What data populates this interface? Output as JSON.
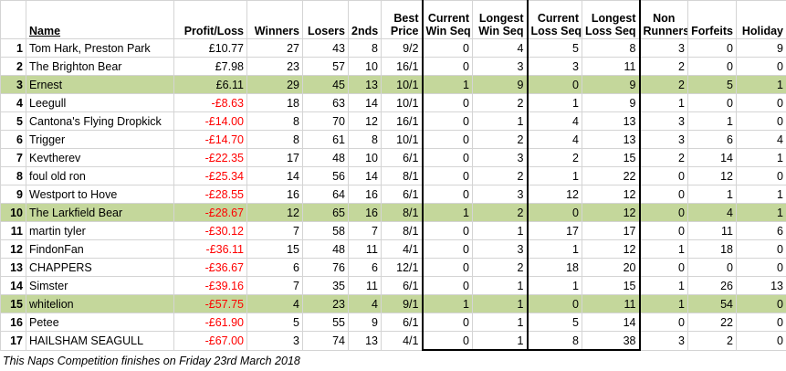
{
  "headers": {
    "name": "Name",
    "profit_loss": "Profit/Loss",
    "winners": "Winners",
    "losers": "Losers",
    "seconds": "2nds",
    "best_price": [
      "Best",
      "Price"
    ],
    "current_win_seq": [
      "Current",
      "Win Seq"
    ],
    "longest_win_seq": [
      "Longest",
      "Win Seq"
    ],
    "current_loss_seq": [
      "Current",
      "Loss Seq"
    ],
    "longest_loss_seq": [
      "Longest",
      "Loss Seq"
    ],
    "non_runners": [
      "Non",
      "Runners"
    ],
    "forfeits": "Forfeits",
    "holiday": "Holiday"
  },
  "rows": [
    {
      "rank": "1",
      "name": "Tom Hark, Preston Park",
      "pl": "£10.77",
      "neg": false,
      "winners": "27",
      "losers": "43",
      "seconds": "8",
      "best": "9/2",
      "cws": "0",
      "lws": "4",
      "cls": "5",
      "lls": "8",
      "nr": "3",
      "forfeits": "0",
      "holiday": "9",
      "hl": false
    },
    {
      "rank": "2",
      "name": "The Brighton Bear",
      "pl": "£7.98",
      "neg": false,
      "winners": "23",
      "losers": "57",
      "seconds": "10",
      "best": "16/1",
      "cws": "0",
      "lws": "3",
      "cls": "3",
      "lls": "11",
      "nr": "2",
      "forfeits": "0",
      "holiday": "0",
      "hl": false
    },
    {
      "rank": "3",
      "name": "Ernest",
      "pl": "£6.11",
      "neg": false,
      "winners": "29",
      "losers": "45",
      "seconds": "13",
      "best": "10/1",
      "cws": "1",
      "lws": "9",
      "cls": "0",
      "lls": "9",
      "nr": "2",
      "forfeits": "5",
      "holiday": "1",
      "hl": true
    },
    {
      "rank": "4",
      "name": "Leegull",
      "pl": "-£8.63",
      "neg": true,
      "winners": "18",
      "losers": "63",
      "seconds": "14",
      "best": "10/1",
      "cws": "0",
      "lws": "2",
      "cls": "1",
      "lls": "9",
      "nr": "1",
      "forfeits": "0",
      "holiday": "0",
      "hl": false
    },
    {
      "rank": "5",
      "name": "Cantona's Flying Dropkick",
      "pl": "-£14.00",
      "neg": true,
      "winners": "8",
      "losers": "70",
      "seconds": "12",
      "best": "16/1",
      "cws": "0",
      "lws": "1",
      "cls": "4",
      "lls": "13",
      "nr": "3",
      "forfeits": "1",
      "holiday": "0",
      "hl": false
    },
    {
      "rank": "6",
      "name": "Trigger",
      "pl": "-£14.70",
      "neg": true,
      "winners": "8",
      "losers": "61",
      "seconds": "8",
      "best": "10/1",
      "cws": "0",
      "lws": "2",
      "cls": "4",
      "lls": "13",
      "nr": "3",
      "forfeits": "6",
      "holiday": "4",
      "hl": false
    },
    {
      "rank": "7",
      "name": "Kevtherev",
      "pl": "-£22.35",
      "neg": true,
      "winners": "17",
      "losers": "48",
      "seconds": "10",
      "best": "6/1",
      "cws": "0",
      "lws": "3",
      "cls": "2",
      "lls": "15",
      "nr": "2",
      "forfeits": "14",
      "holiday": "1",
      "hl": false
    },
    {
      "rank": "8",
      "name": "foul old ron",
      "pl": "-£25.34",
      "neg": true,
      "winners": "14",
      "losers": "56",
      "seconds": "14",
      "best": "8/1",
      "cws": "0",
      "lws": "2",
      "cls": "1",
      "lls": "22",
      "nr": "0",
      "forfeits": "12",
      "holiday": "0",
      "hl": false
    },
    {
      "rank": "9",
      "name": "Westport to Hove",
      "pl": "-£28.55",
      "neg": true,
      "winners": "16",
      "losers": "64",
      "seconds": "16",
      "best": "6/1",
      "cws": "0",
      "lws": "3",
      "cls": "12",
      "lls": "12",
      "nr": "0",
      "forfeits": "1",
      "holiday": "1",
      "hl": false
    },
    {
      "rank": "10",
      "name": "The Larkfield Bear",
      "pl": "-£28.67",
      "neg": true,
      "winners": "12",
      "losers": "65",
      "seconds": "16",
      "best": "8/1",
      "cws": "1",
      "lws": "2",
      "cls": "0",
      "lls": "12",
      "nr": "0",
      "forfeits": "4",
      "holiday": "1",
      "hl": true
    },
    {
      "rank": "11",
      "name": "martin tyler",
      "pl": "-£30.12",
      "neg": true,
      "winners": "7",
      "losers": "58",
      "seconds": "7",
      "best": "8/1",
      "cws": "0",
      "lws": "1",
      "cls": "17",
      "lls": "17",
      "nr": "0",
      "forfeits": "11",
      "holiday": "6",
      "hl": false
    },
    {
      "rank": "12",
      "name": "FindonFan",
      "pl": "-£36.11",
      "neg": true,
      "winners": "15",
      "losers": "48",
      "seconds": "11",
      "best": "4/1",
      "cws": "0",
      "lws": "3",
      "cls": "1",
      "lls": "12",
      "nr": "1",
      "forfeits": "18",
      "holiday": "0",
      "hl": false
    },
    {
      "rank": "13",
      "name": "CHAPPERS",
      "pl": "-£36.67",
      "neg": true,
      "winners": "6",
      "losers": "76",
      "seconds": "6",
      "best": "12/1",
      "cws": "0",
      "lws": "2",
      "cls": "18",
      "lls": "20",
      "nr": "0",
      "forfeits": "0",
      "holiday": "0",
      "hl": false
    },
    {
      "rank": "14",
      "name": "Simster",
      "pl": "-£39.16",
      "neg": true,
      "winners": "7",
      "losers": "35",
      "seconds": "11",
      "best": "6/1",
      "cws": "0",
      "lws": "1",
      "cls": "1",
      "lls": "15",
      "nr": "1",
      "forfeits": "26",
      "holiday": "13",
      "hl": false
    },
    {
      "rank": "15",
      "name": "whitelion",
      "pl": "-£57.75",
      "neg": true,
      "winners": "4",
      "losers": "23",
      "seconds": "4",
      "best": "9/1",
      "cws": "1",
      "lws": "1",
      "cls": "0",
      "lls": "11",
      "nr": "1",
      "forfeits": "54",
      "holiday": "0",
      "hl": true
    },
    {
      "rank": "16",
      "name": "Petee",
      "pl": "-£61.90",
      "neg": true,
      "winners": "5",
      "losers": "55",
      "seconds": "9",
      "best": "6/1",
      "cws": "0",
      "lws": "1",
      "cls": "5",
      "lls": "14",
      "nr": "0",
      "forfeits": "22",
      "holiday": "0",
      "hl": false
    },
    {
      "rank": "17",
      "name": "HAILSHAM SEAGULL",
      "pl": "-£67.00",
      "neg": true,
      "winners": "3",
      "losers": "74",
      "seconds": "13",
      "best": "4/1",
      "cws": "0",
      "lws": "1",
      "cls": "8",
      "lls": "38",
      "nr": "3",
      "forfeits": "2",
      "holiday": "0",
      "hl": false
    }
  ],
  "colors": {
    "highlight": "#c4d79b",
    "negative": "#ff0000"
  },
  "footer": "This Naps Competition finishes on Friday 23rd March 2018"
}
